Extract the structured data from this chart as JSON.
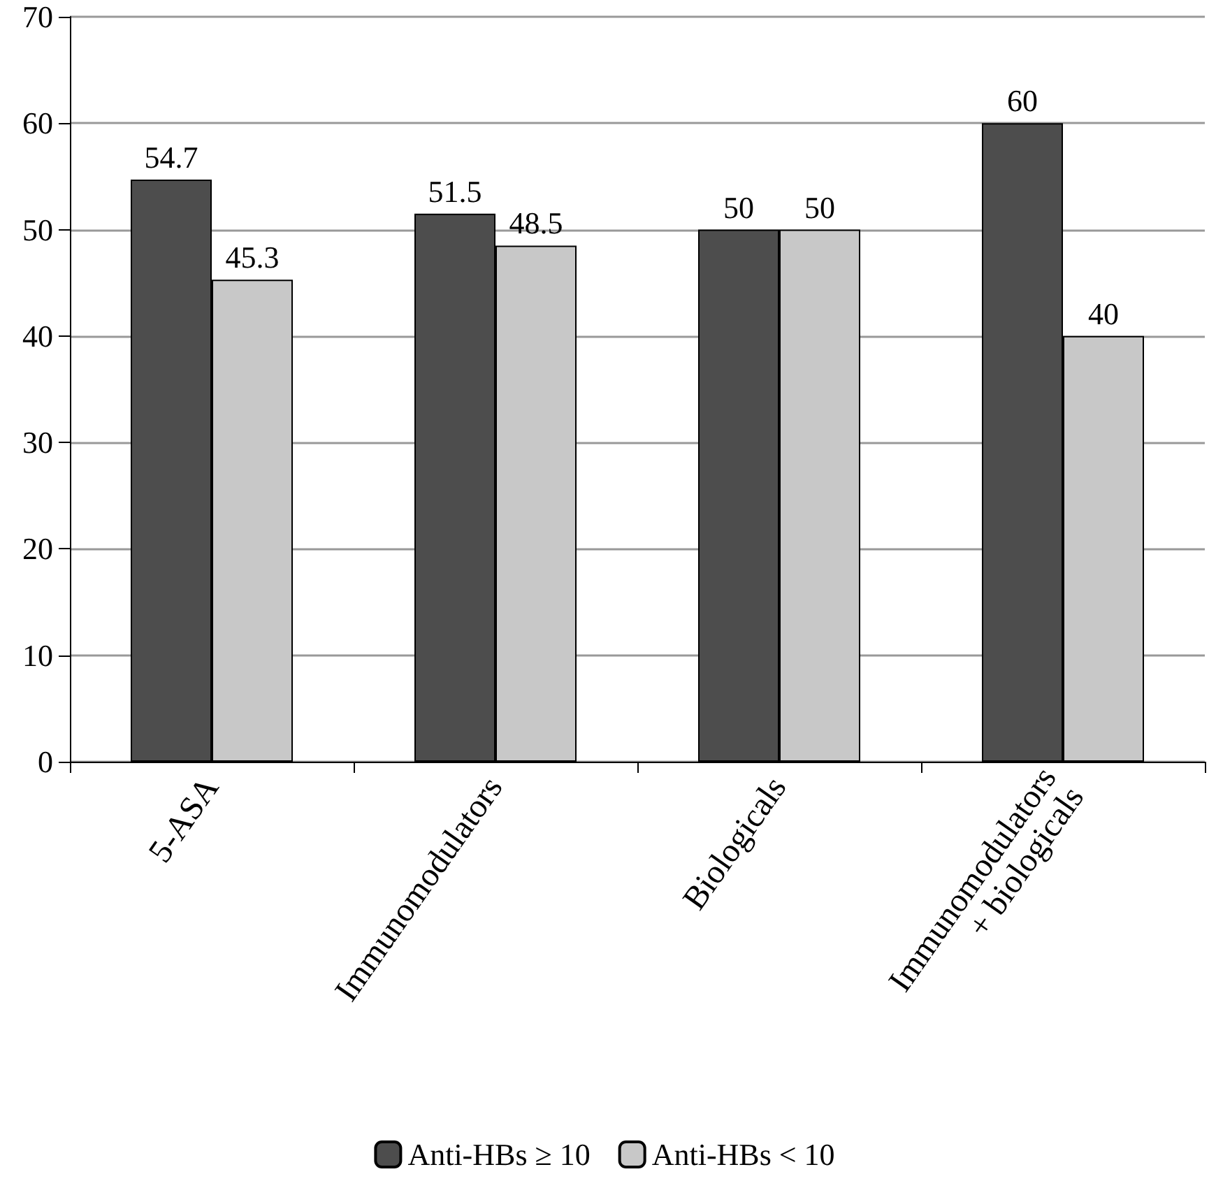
{
  "chart_data": {
    "type": "bar",
    "categories": [
      "5-ASA",
      "Immunomodulators",
      "Biologicals",
      "Immunomodulators\n+ biologicals"
    ],
    "series": [
      {
        "name": "Anti-HBs ≥ 10",
        "color": "#4d4d4d",
        "values": [
          54.7,
          51.5,
          50,
          60
        ]
      },
      {
        "name": "Anti-HBs < 10",
        "color": "#c8c8c8",
        "values": [
          45.3,
          48.5,
          50,
          40
        ]
      }
    ],
    "ylim": [
      0,
      70
    ],
    "yticks": [
      0,
      10,
      20,
      30,
      40,
      50,
      60,
      70
    ],
    "grid": "y",
    "legend": "bottom",
    "data_labels": true
  }
}
